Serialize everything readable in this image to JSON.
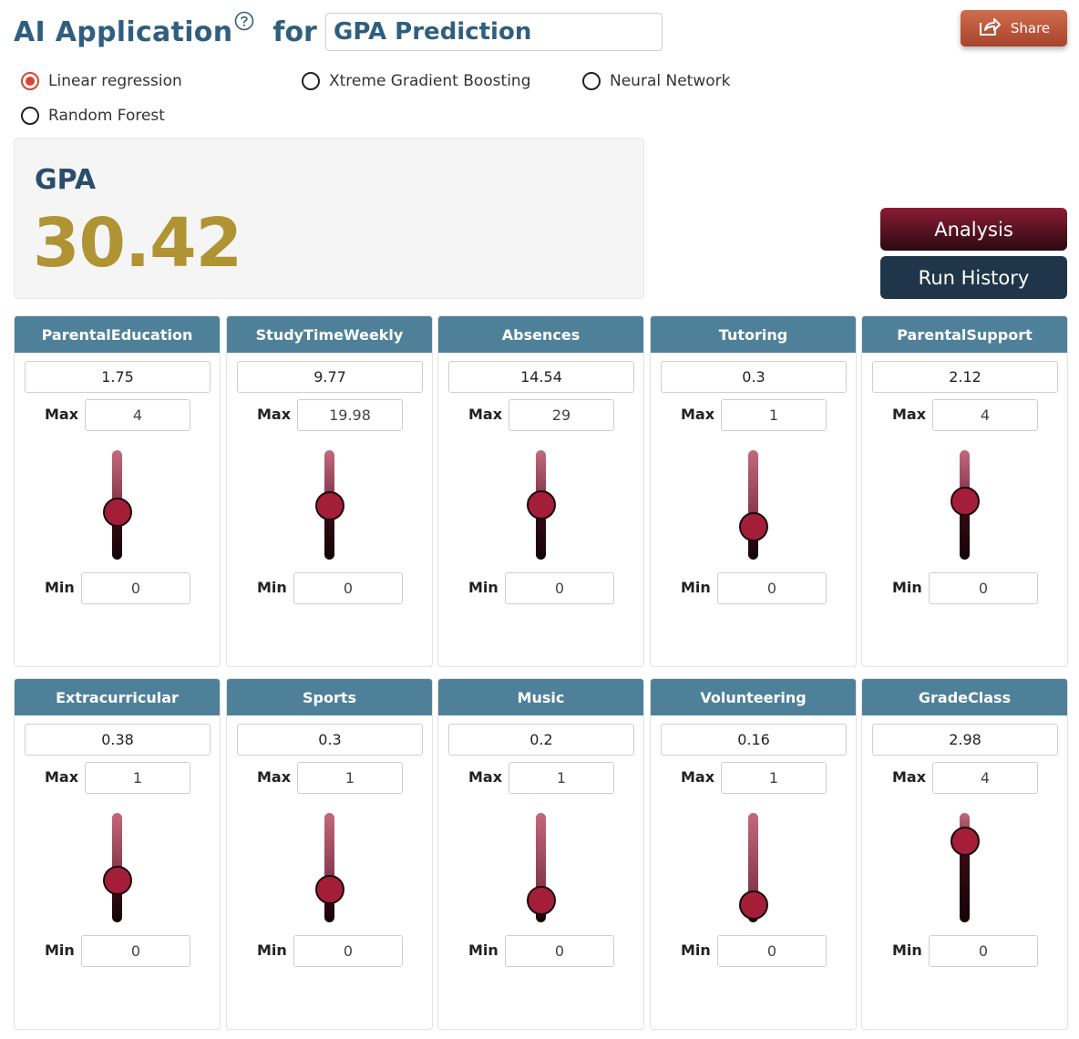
{
  "header": {
    "title": "AI Application",
    "for_word": "for",
    "target": "GPA Prediction",
    "share_label": "Share"
  },
  "models": [
    {
      "label": "Linear regression",
      "checked": true
    },
    {
      "label": "Xtreme Gradient Boosting",
      "checked": false
    },
    {
      "label": "Neural Network",
      "checked": false
    },
    {
      "label": "Random Forest",
      "checked": false
    }
  ],
  "result": {
    "label": "GPA",
    "value": "30.42"
  },
  "actions": {
    "analysis_label": "Analysis",
    "history_label": "Run History"
  },
  "labels": {
    "max": "Max",
    "min": "Min"
  },
  "colors": {
    "accent": "#2f5f7f",
    "result_value": "#b09433",
    "card_header": "#4e8199",
    "slider_thumb": "#a41e39",
    "share": "#c0583b"
  },
  "features": [
    {
      "name": "ParentalEducation",
      "value": "1.75",
      "max": "4",
      "min": "0",
      "fraction": 0.4375
    },
    {
      "name": "StudyTimeWeekly",
      "value": "9.77",
      "max": "19.98",
      "min": "0",
      "fraction": 0.489
    },
    {
      "name": "Absences",
      "value": "14.54",
      "max": "29",
      "min": "0",
      "fraction": 0.501
    },
    {
      "name": "Tutoring",
      "value": "0.3",
      "max": "1",
      "min": "0",
      "fraction": 0.3
    },
    {
      "name": "ParentalSupport",
      "value": "2.12",
      "max": "4",
      "min": "0",
      "fraction": 0.53
    },
    {
      "name": "Extracurricular",
      "value": "0.38",
      "max": "1",
      "min": "0",
      "fraction": 0.38
    },
    {
      "name": "Sports",
      "value": "0.3",
      "max": "1",
      "min": "0",
      "fraction": 0.3
    },
    {
      "name": "Music",
      "value": "0.2",
      "max": "1",
      "min": "0",
      "fraction": 0.2
    },
    {
      "name": "Volunteering",
      "value": "0.16",
      "max": "1",
      "min": "0",
      "fraction": 0.16
    },
    {
      "name": "GradeClass",
      "value": "2.98",
      "max": "4",
      "min": "0",
      "fraction": 0.745
    }
  ]
}
